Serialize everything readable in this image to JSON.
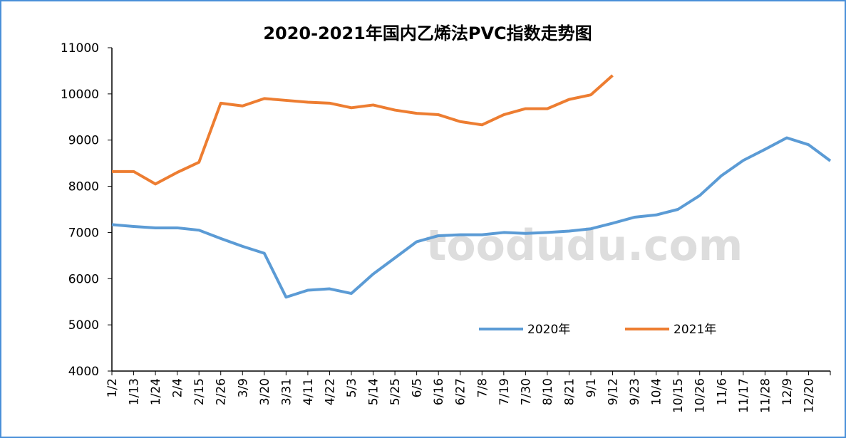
{
  "watermark": "toodudu.com",
  "chart_data": {
    "type": "line",
    "title": "2020-2021年国内乙烯法PVC指数走势图",
    "categories": [
      "1/2",
      "1/13",
      "1/24",
      "2/4",
      "2/15",
      "2/26",
      "3/9",
      "3/20",
      "3/31",
      "4/11",
      "4/22",
      "5/3",
      "5/14",
      "5/25",
      "6/5",
      "6/16",
      "6/27",
      "7/8",
      "7/19",
      "7/30",
      "8/10",
      "8/21",
      "9/1",
      "9/12",
      "9/23",
      "10/4",
      "10/15",
      "10/26",
      "11/6",
      "11/17",
      "11/28",
      "12/9",
      "12/20",
      null
    ],
    "series": [
      {
        "name": "2020年",
        "color": "#5b9bd5",
        "values": [
          7170,
          7130,
          7100,
          7100,
          7050,
          6870,
          6700,
          6550,
          5600,
          5750,
          5780,
          5680,
          6100,
          6450,
          6800,
          6930,
          6950,
          6950,
          7000,
          6980,
          7000,
          7030,
          7080,
          7200,
          7330,
          7380,
          7500,
          7800,
          8230,
          8560,
          8800,
          9050,
          8900,
          8550
        ]
      },
      {
        "name": "2021年",
        "color": "#ed7d31",
        "values": [
          8320,
          8320,
          8050,
          8300,
          8520,
          9800,
          9740,
          9900,
          9860,
          9820,
          9800,
          9700,
          9760,
          9650,
          9580,
          9550,
          9400,
          9330,
          9550,
          9680,
          9680,
          9880,
          9980,
          10400,
          null,
          null,
          null,
          null,
          null,
          null,
          null,
          null,
          null,
          null
        ]
      }
    ],
    "ylim": [
      4000,
      11000
    ],
    "yticks": [
      4000,
      5000,
      6000,
      7000,
      8000,
      9000,
      10000,
      11000
    ]
  }
}
